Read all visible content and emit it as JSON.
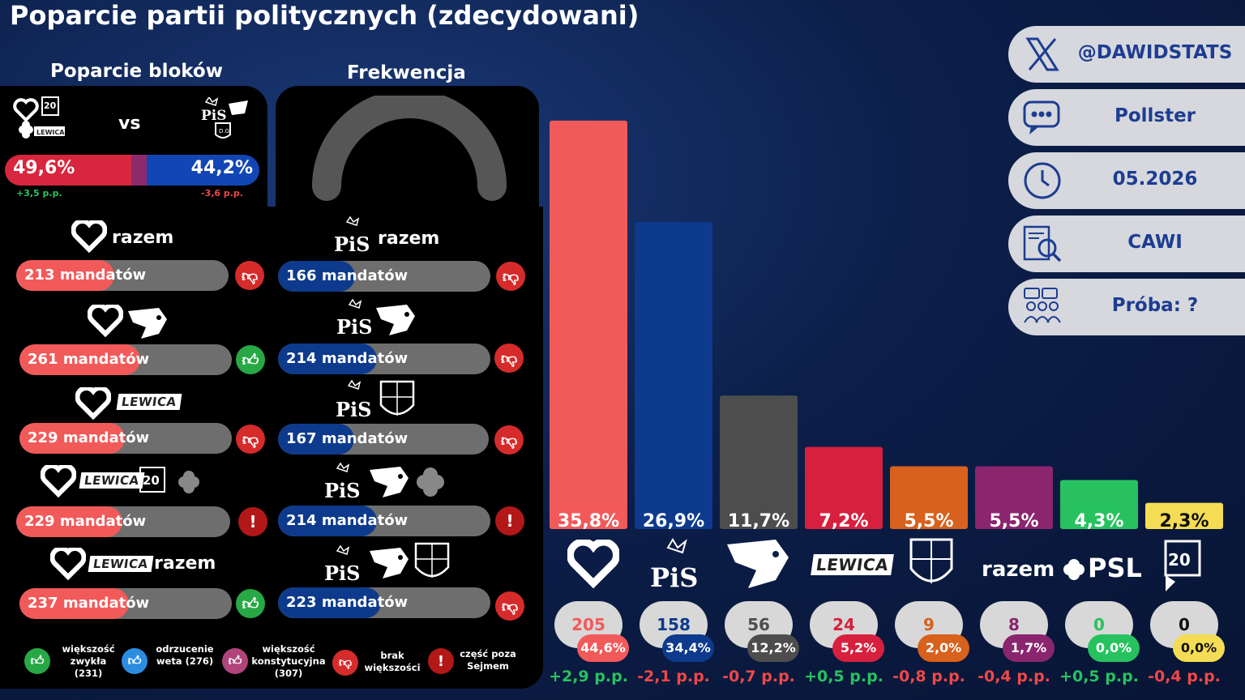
{
  "title": "Poparcie partii politycznych (zdecydowani)",
  "blocks": {
    "title": "Poparcie bloków",
    "vs": "vs",
    "left_value": "49,6%",
    "left_change": "+3,5 p.p.",
    "right_value": "44,2%",
    "right_change": "-3,6 p.p.",
    "left_share": 49.6,
    "right_share": 44.2,
    "colors": {
      "left": "#d7263d",
      "right": "#1246b4"
    }
  },
  "turnout": {
    "title": "Frekwencja"
  },
  "coalitions_left": [
    {
      "label": "213 mandatów",
      "seats": 213,
      "status": "brak-wiekszosci"
    },
    {
      "label": "261 mandatów",
      "seats": 261,
      "status": "wiekszosc-zwykla"
    },
    {
      "label": "229 mandatów",
      "seats": 229,
      "status": "brak-wiekszosci"
    },
    {
      "label": "229 mandatów",
      "seats": 229,
      "status": "czesc-poza-sejmem"
    },
    {
      "label": "237 mandatów",
      "seats": 237,
      "status": "wiekszosc-zwykla"
    }
  ],
  "coalitions_right": [
    {
      "label": "166 mandatów",
      "seats": 166,
      "status": "brak-wiekszosci"
    },
    {
      "label": "214 mandatów",
      "seats": 214,
      "status": "brak-wiekszosci"
    },
    {
      "label": "167 mandatów",
      "seats": 167,
      "status": "brak-wiekszosci"
    },
    {
      "label": "214 mandatów",
      "seats": 214,
      "status": "czesc-poza-sejmem"
    },
    {
      "label": "223 mandatów",
      "seats": 223,
      "status": "brak-wiekszosci"
    }
  ],
  "party_words": {
    "razem": "razem",
    "lewica": "LEWICA",
    "pis": "PiS",
    "psl": "PSL"
  },
  "legend": [
    {
      "label": "większość zwykła (231)",
      "icon": "thumbs-up-green",
      "color": "#27a845"
    },
    {
      "label": "odrzucenie weta (276)",
      "icon": "thumbs-up-blue",
      "color": "#2c8de0"
    },
    {
      "label": "większość konstytucyjna (307)",
      "icon": "thumbs-up-purple",
      "color": "#b0457c"
    },
    {
      "label": "brak większości",
      "icon": "thumbs-down-red",
      "color": "#d62b2b"
    },
    {
      "label": "część poza Sejmem",
      "icon": "exclamation-red",
      "color": "#b21818"
    }
  ],
  "info": {
    "handle": "@DAWIDSTATS",
    "pollster": "Pollster",
    "date": "05.2026",
    "method": "CAWI",
    "sample": "Próba: ?"
  },
  "chart_data": {
    "type": "bar",
    "categories": [
      "KO",
      "PiS",
      "Konfederacja",
      "Lewica",
      "Korona",
      "Razem",
      "PSL",
      "Polska 2050"
    ],
    "values": [
      35.8,
      26.9,
      11.7,
      7.2,
      5.5,
      5.5,
      4.3,
      2.3
    ],
    "value_labels": [
      "35,8%",
      "26,9%",
      "11,7%",
      "7,2%",
      "5,5%",
      "5,5%",
      "4,3%",
      "2,3%"
    ],
    "colors": [
      "#f25a5a",
      "#0d3a8c",
      "#4d4d4d",
      "#d7203e",
      "#d7611d",
      "#8a256e",
      "#27c25f",
      "#f5dc55"
    ],
    "seats": [
      "205",
      "158",
      "56",
      "24",
      "9",
      "8",
      "0",
      "0"
    ],
    "seat_colors": [
      "#f25a5a",
      "#0d3a8c",
      "#4d4d4d",
      "#d7203e",
      "#d7611d",
      "#8a256e",
      "#27c25f",
      "#111111"
    ],
    "seat_share": [
      "44,6%",
      "34,4%",
      "12,2%",
      "5,2%",
      "2,0%",
      "1,7%",
      "0,0%",
      "0,0%"
    ],
    "changes": [
      "+2,9 p.p.",
      "-2,1 p.p.",
      "-0,7 p.p.",
      "+0,5 p.p.",
      "-0,8 p.p.",
      "-0,4 p.p.",
      "+0,5 p.p.",
      "-0,4 p.p."
    ],
    "change_colors": [
      "#27c25f",
      "#f04848",
      "#f04848",
      "#27c25f",
      "#f04848",
      "#f04848",
      "#27c25f",
      "#f04848"
    ],
    "ylim": [
      0,
      36
    ]
  }
}
